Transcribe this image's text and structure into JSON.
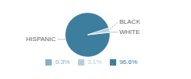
{
  "chart_data": {
    "type": "pie",
    "categories": [
      "HISPANIC",
      "BLACK",
      "WHITE"
    ],
    "values": [
      96.6,
      3.1,
      0.3
    ],
    "value_labels": [
      "96.6%",
      "3.1%",
      "0.3%"
    ],
    "colors": [
      "#3d7d9e",
      "#b8cfd8",
      "#8aafc2"
    ],
    "legend": "bottom"
  }
}
